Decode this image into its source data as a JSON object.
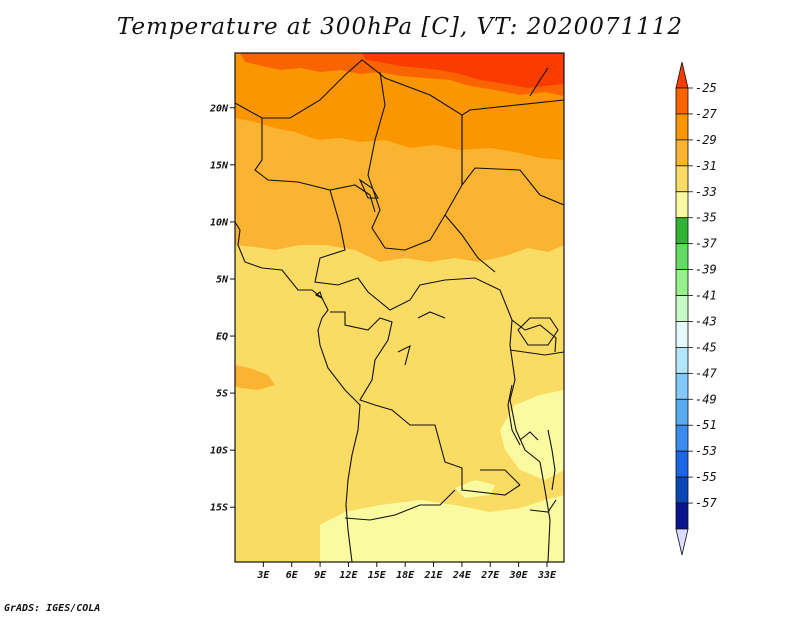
{
  "title": "Temperature at 300hPa [C], VT: 2020071112",
  "credit": "GrADS: IGES/COLA",
  "map": {
    "lat_labels": [
      "20N",
      "15N",
      "10N",
      "5N",
      "EQ",
      "5S",
      "10S",
      "15S"
    ],
    "lat_values": [
      20,
      15,
      10,
      5,
      0,
      -5,
      -10,
      -15
    ],
    "lon_labels": [
      "3E",
      "6E",
      "9E",
      "12E",
      "15E",
      "18E",
      "21E",
      "24E",
      "27E",
      "30E",
      "33E"
    ],
    "lon_values": [
      3,
      6,
      9,
      12,
      15,
      18,
      21,
      24,
      27,
      30,
      33
    ],
    "lat_range": [
      -19.8,
      24.8
    ],
    "lon_range": [
      0,
      34.8
    ],
    "units": "C"
  },
  "legend": {
    "labels": [
      "-25",
      "-27",
      "-29",
      "-31",
      "-33",
      "-35",
      "-37",
      "-39",
      "-41",
      "-43",
      "-45",
      "-47",
      "-49",
      "-51",
      "-53",
      "-55",
      "-57"
    ],
    "colors": [
      "#fa3c00",
      "#fa6400",
      "#fa9600",
      "#fab432",
      "#fadc64",
      "#fafaa0",
      "#32b432",
      "#64dc64",
      "#96f08c",
      "#c8fac8",
      "#e6fafa",
      "#b4e6fa",
      "#82c8fa",
      "#5aaaf0",
      "#3c8cf0",
      "#1e64e6",
      "#0a46b4",
      "#0a148c",
      "#dcdcff"
    ]
  }
}
